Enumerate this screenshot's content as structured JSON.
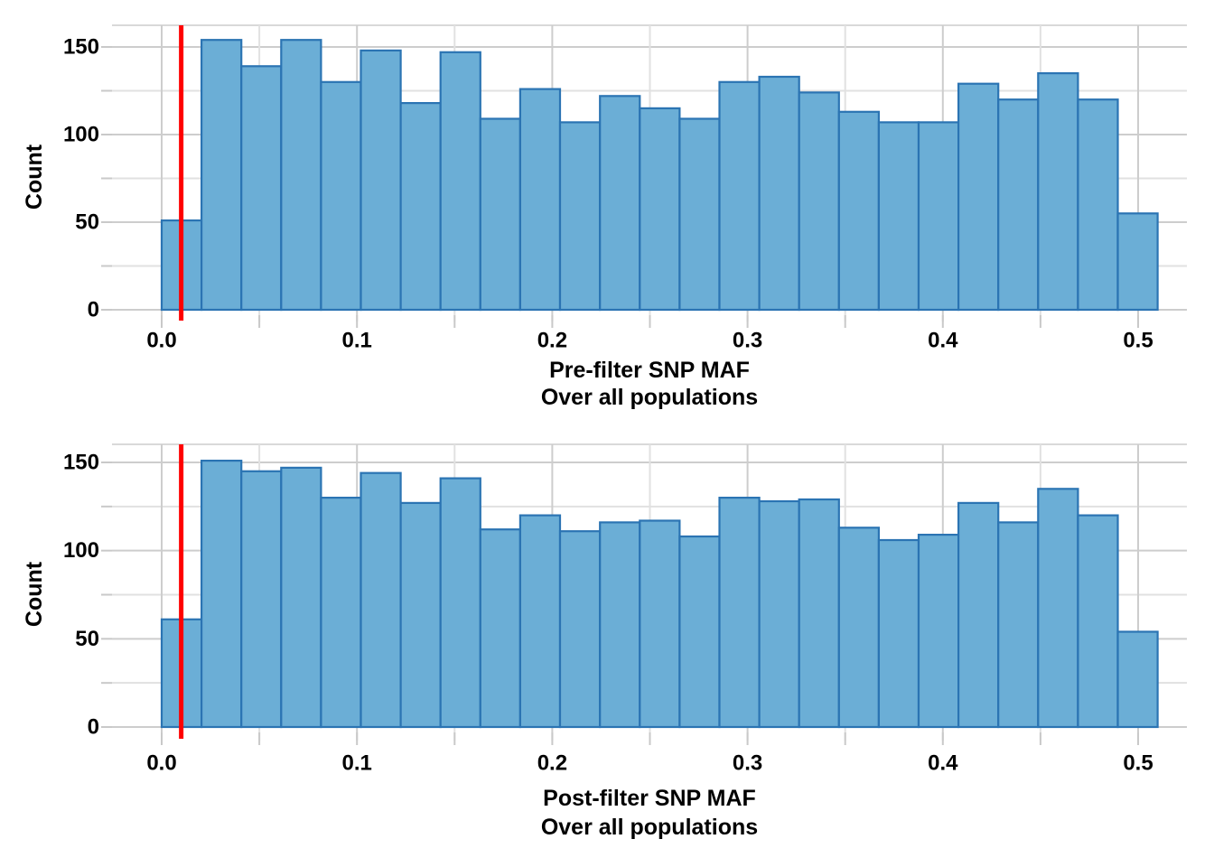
{
  "figure_title": "",
  "style": {
    "background": "#FFFFFF",
    "bar_fill": "#6BAED6",
    "bar_stroke": "#2B74B3",
    "threshold_color": "#FF0000",
    "grid_major_color": "#CDCDCD",
    "grid_minor_color": "#E1E1E1",
    "tick_color": "#C9C9C9",
    "panel_border_color": "#D9D9D9",
    "text_color": "#000000"
  },
  "chart_data": [
    {
      "type": "bar",
      "subtype": "histogram",
      "panel": "top",
      "xlabel_lines": [
        "Pre-filter SNP MAF",
        "Over all populations"
      ],
      "ylabel": "Count",
      "bin_start": 0.0,
      "bin_width": 0.0204,
      "counts": [
        51,
        154,
        139,
        154,
        130,
        148,
        118,
        147,
        109,
        126,
        107,
        122,
        115,
        109,
        130,
        133,
        124,
        113,
        107,
        107,
        129,
        120,
        135,
        120,
        55
      ],
      "threshold_line_x": 0.01,
      "x_major_breaks": [
        0.0,
        0.1,
        0.2,
        0.3,
        0.4,
        0.5
      ],
      "x_tick_labels": [
        "0.0",
        "0.1",
        "0.2",
        "0.3",
        "0.4",
        "0.5"
      ],
      "x_minor_breaks": [
        0.05,
        0.15,
        0.25,
        0.35,
        0.45
      ],
      "y_major_breaks": [
        0,
        50,
        100,
        150
      ],
      "y_tick_labels": [
        "0",
        "50",
        "100",
        "150"
      ],
      "y_minor_breaks": [
        25,
        75,
        125
      ],
      "xlim": [
        -0.0255,
        0.525
      ],
      "ylim": [
        -8,
        162
      ],
      "grid": true,
      "legend": "none"
    },
    {
      "type": "bar",
      "subtype": "histogram",
      "panel": "bottom",
      "xlabel_lines": [
        "Post-filter SNP MAF",
        "Over all populations"
      ],
      "ylabel": "Count",
      "bin_start": 0.0,
      "bin_width": 0.0204,
      "counts": [
        61,
        151,
        145,
        147,
        130,
        144,
        127,
        141,
        112,
        120,
        111,
        116,
        117,
        108,
        130,
        128,
        129,
        113,
        106,
        109,
        127,
        116,
        135,
        120,
        54
      ],
      "threshold_line_x": 0.01,
      "x_major_breaks": [
        0.0,
        0.1,
        0.2,
        0.3,
        0.4,
        0.5
      ],
      "x_tick_labels": [
        "0.0",
        "0.1",
        "0.2",
        "0.3",
        "0.4",
        "0.5"
      ],
      "x_minor_breaks": [
        0.05,
        0.15,
        0.25,
        0.35,
        0.45
      ],
      "y_major_breaks": [
        0,
        50,
        100,
        150
      ],
      "y_tick_labels": [
        "0",
        "50",
        "100",
        "150"
      ],
      "y_minor_breaks": [
        25,
        75,
        125
      ],
      "xlim": [
        -0.0255,
        0.525
      ],
      "ylim": [
        -8,
        162
      ],
      "grid": true,
      "legend": "none"
    }
  ]
}
